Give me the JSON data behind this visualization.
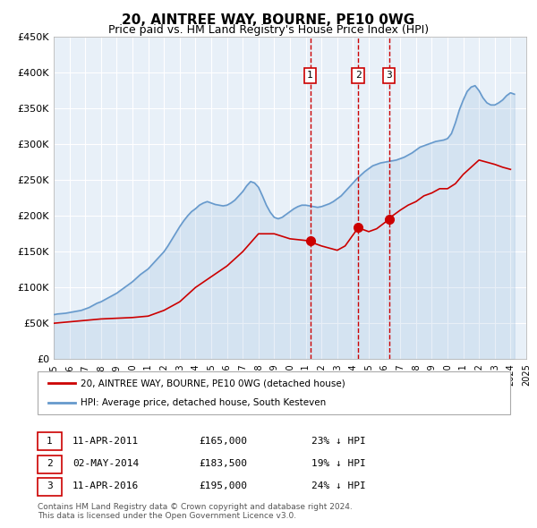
{
  "title": "20, AINTREE WAY, BOURNE, PE10 0WG",
  "subtitle": "Price paid vs. HM Land Registry's House Price Index (HPI)",
  "background_color": "#ffffff",
  "plot_background_color": "#e8f0f8",
  "grid_color": "#ffffff",
  "xmin": 1995,
  "xmax": 2025,
  "ymin": 0,
  "ymax": 450000,
  "yticks": [
    0,
    50000,
    100000,
    150000,
    200000,
    250000,
    300000,
    350000,
    400000,
    450000
  ],
  "ytick_labels": [
    "£0",
    "£50K",
    "£100K",
    "£150K",
    "£200K",
    "£250K",
    "£300K",
    "£350K",
    "£400K",
    "£450K"
  ],
  "xticks": [
    1995,
    1996,
    1997,
    1998,
    1999,
    2000,
    2001,
    2002,
    2003,
    2004,
    2005,
    2006,
    2007,
    2008,
    2009,
    2010,
    2011,
    2012,
    2013,
    2014,
    2015,
    2016,
    2017,
    2018,
    2019,
    2020,
    2021,
    2022,
    2023,
    2024,
    2025
  ],
  "sale_dates": [
    2011.28,
    2014.33,
    2016.28
  ],
  "sale_prices": [
    165000,
    183500,
    195000
  ],
  "sale_labels": [
    "1",
    "2",
    "3"
  ],
  "vline_color": "#cc0000",
  "sale_dot_color": "#cc0000",
  "hpi_color": "#6699cc",
  "property_color": "#cc0000",
  "legend_box_color": "#dddddd",
  "legend_label_property": "20, AINTREE WAY, BOURNE, PE10 0WG (detached house)",
  "legend_label_hpi": "HPI: Average price, detached house, South Kesteven",
  "table_rows": [
    {
      "label": "1",
      "date": "11-APR-2011",
      "price": "£165,000",
      "change": "23% ↓ HPI"
    },
    {
      "label": "2",
      "date": "02-MAY-2014",
      "price": "£183,500",
      "change": "19% ↓ HPI"
    },
    {
      "label": "3",
      "date": "11-APR-2016",
      "price": "£195,000",
      "change": "24% ↓ HPI"
    }
  ],
  "footer_text": "Contains HM Land Registry data © Crown copyright and database right 2024.\nThis data is licensed under the Open Government Licence v3.0.",
  "hpi_data_x": [
    1995.0,
    1995.25,
    1995.5,
    1995.75,
    1996.0,
    1996.25,
    1996.5,
    1996.75,
    1997.0,
    1997.25,
    1997.5,
    1997.75,
    1998.0,
    1998.25,
    1998.5,
    1998.75,
    1999.0,
    1999.25,
    1999.5,
    1999.75,
    2000.0,
    2000.25,
    2000.5,
    2000.75,
    2001.0,
    2001.25,
    2001.5,
    2001.75,
    2002.0,
    2002.25,
    2002.5,
    2002.75,
    2003.0,
    2003.25,
    2003.5,
    2003.75,
    2004.0,
    2004.25,
    2004.5,
    2004.75,
    2005.0,
    2005.25,
    2005.5,
    2005.75,
    2006.0,
    2006.25,
    2006.5,
    2006.75,
    2007.0,
    2007.25,
    2007.5,
    2007.75,
    2008.0,
    2008.25,
    2008.5,
    2008.75,
    2009.0,
    2009.25,
    2009.5,
    2009.75,
    2010.0,
    2010.25,
    2010.5,
    2010.75,
    2011.0,
    2011.25,
    2011.5,
    2011.75,
    2012.0,
    2012.25,
    2012.5,
    2012.75,
    2013.0,
    2013.25,
    2013.5,
    2013.75,
    2014.0,
    2014.25,
    2014.5,
    2014.75,
    2015.0,
    2015.25,
    2015.5,
    2015.75,
    2016.0,
    2016.25,
    2016.5,
    2016.75,
    2017.0,
    2017.25,
    2017.5,
    2017.75,
    2018.0,
    2018.25,
    2018.5,
    2018.75,
    2019.0,
    2019.25,
    2019.5,
    2019.75,
    2020.0,
    2020.25,
    2020.5,
    2020.75,
    2021.0,
    2021.25,
    2021.5,
    2021.75,
    2022.0,
    2022.25,
    2022.5,
    2022.75,
    2023.0,
    2023.25,
    2023.5,
    2023.75,
    2024.0,
    2024.25
  ],
  "hpi_data_y": [
    62000,
    63000,
    63500,
    64000,
    65000,
    66000,
    67000,
    68000,
    70000,
    72000,
    75000,
    78000,
    80000,
    83000,
    86000,
    89000,
    92000,
    96000,
    100000,
    104000,
    108000,
    113000,
    118000,
    122000,
    126000,
    132000,
    138000,
    144000,
    150000,
    158000,
    167000,
    176000,
    185000,
    193000,
    200000,
    206000,
    210000,
    215000,
    218000,
    220000,
    218000,
    216000,
    215000,
    214000,
    215000,
    218000,
    222000,
    228000,
    234000,
    242000,
    248000,
    246000,
    240000,
    228000,
    215000,
    205000,
    198000,
    196000,
    198000,
    202000,
    206000,
    210000,
    213000,
    215000,
    215000,
    214000,
    213000,
    212000,
    213000,
    215000,
    217000,
    220000,
    224000,
    228000,
    234000,
    240000,
    246000,
    252000,
    257000,
    262000,
    266000,
    270000,
    272000,
    274000,
    275000,
    276000,
    277000,
    278000,
    280000,
    282000,
    285000,
    288000,
    292000,
    296000,
    298000,
    300000,
    302000,
    304000,
    305000,
    306000,
    308000,
    315000,
    330000,
    348000,
    362000,
    374000,
    380000,
    382000,
    375000,
    365000,
    358000,
    355000,
    355000,
    358000,
    362000,
    368000,
    372000,
    370000
  ],
  "property_data_x": [
    1995.0,
    1996.0,
    1997.0,
    1998.0,
    1999.0,
    2000.0,
    2001.0,
    2002.0,
    2003.0,
    2004.0,
    2005.0,
    2006.0,
    2007.0,
    2008.0,
    2009.0,
    2010.0,
    2011.28,
    2011.5,
    2012.0,
    2012.5,
    2013.0,
    2013.5,
    2014.33,
    2014.5,
    2015.0,
    2015.5,
    2016.28,
    2016.5,
    2017.0,
    2017.5,
    2018.0,
    2018.5,
    2019.0,
    2019.5,
    2020.0,
    2020.5,
    2021.0,
    2021.5,
    2022.0,
    2022.5,
    2023.0,
    2023.5,
    2024.0
  ],
  "property_data_y": [
    50000,
    52000,
    54000,
    56000,
    57000,
    58000,
    60000,
    68000,
    80000,
    100000,
    115000,
    130000,
    150000,
    175000,
    175000,
    168000,
    165000,
    162000,
    158000,
    155000,
    152000,
    158000,
    183500,
    182000,
    178000,
    182000,
    195000,
    200000,
    208000,
    215000,
    220000,
    228000,
    232000,
    238000,
    238000,
    245000,
    258000,
    268000,
    278000,
    275000,
    272000,
    268000,
    265000
  ]
}
